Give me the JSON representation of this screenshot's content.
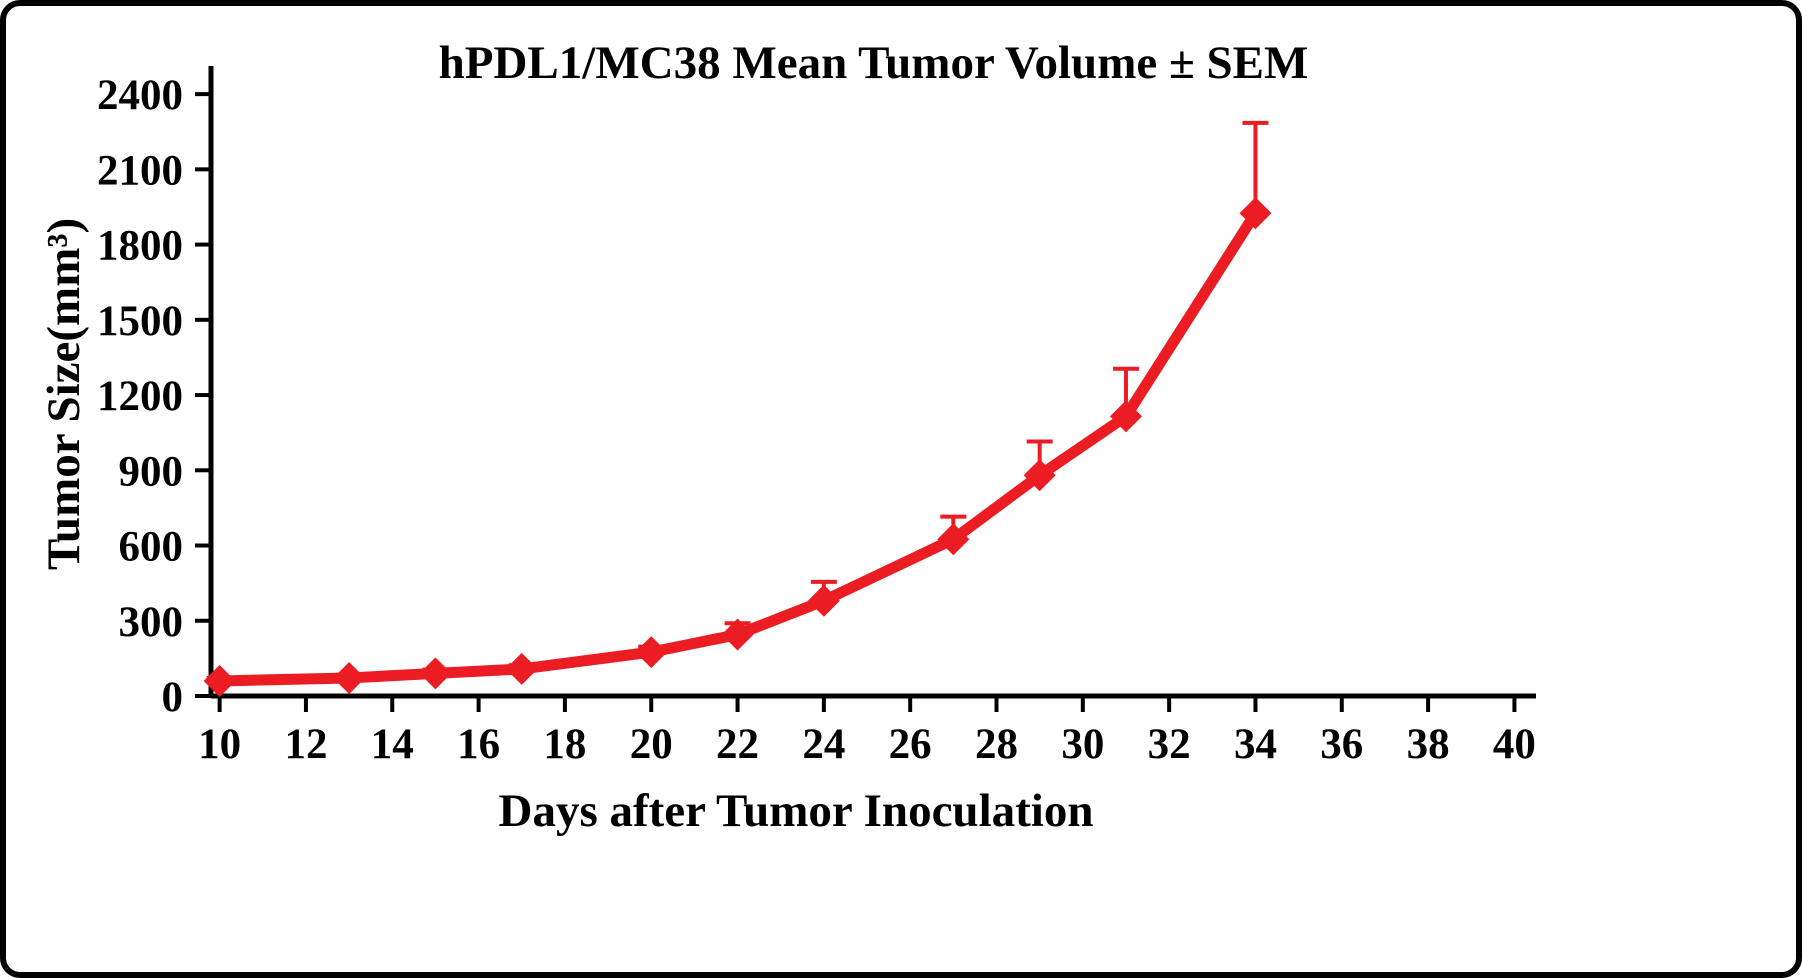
{
  "chart_data": {
    "type": "line",
    "title": "hPDL1/MC38 Mean Tumor Volume ± SEM",
    "xlabel": "Days after Tumor Inoculation",
    "ylabel": "Tumor Size(mm³)",
    "x": [
      10,
      13,
      15,
      17,
      20,
      22,
      24,
      27,
      29,
      31,
      34
    ],
    "series": [
      {
        "name": "hPDL1/MC38 mean tumor volume",
        "values": [
          60,
          72,
          90,
          108,
          175,
          245,
          380,
          625,
          880,
          1115,
          1925
        ],
        "sem_upper": [
          12,
          12,
          15,
          15,
          22,
          45,
          75,
          90,
          135,
          190,
          360
        ],
        "color": "#ec1c23",
        "marker": "diamond"
      }
    ],
    "xlim": [
      9.8,
      40.5
    ],
    "ylim": [
      0,
      2512
    ],
    "xticks": [
      10,
      12,
      14,
      16,
      18,
      20,
      22,
      24,
      26,
      28,
      30,
      32,
      34,
      36,
      38,
      40
    ],
    "yticks": [
      0,
      300,
      600,
      900,
      1200,
      1500,
      1800,
      2100,
      2400
    ],
    "grid": false,
    "legend": "none",
    "axis_color": "#000000"
  }
}
